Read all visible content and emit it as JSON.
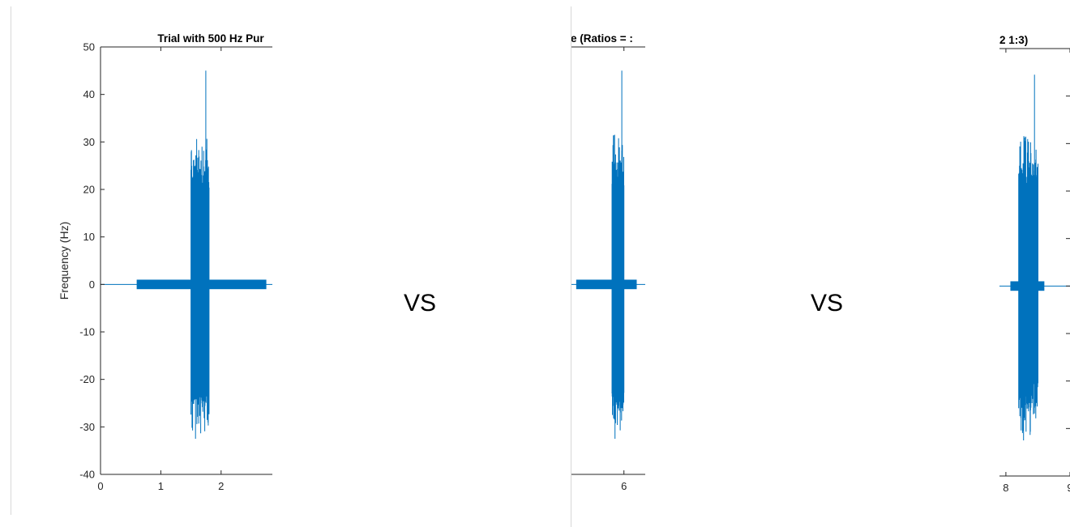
{
  "chart_data": [
    {
      "type": "line",
      "title": "Trial with 500 Hz Pur",
      "ylabel": "Frequency (Hz)",
      "xlabel": "",
      "xlim": [
        0,
        2.85
      ],
      "ylim": [
        -40,
        50
      ],
      "xticks": [
        0,
        1,
        2
      ],
      "yticks": [
        -40,
        -30,
        -20,
        -10,
        0,
        10,
        20,
        30,
        40,
        50
      ],
      "grid": false,
      "series": [
        {
          "color": "#0072BD",
          "baseline": 0,
          "band": {
            "x_start": 0.6,
            "x_end": 2.75,
            "amplitude": 1.0
          },
          "burst": {
            "x_start": 1.5,
            "x_end": 1.8,
            "dense_amplitude": 20,
            "max": 45,
            "min": -32.5
          }
        }
      ]
    },
    {
      "type": "line",
      "title": "e (Ratios = :",
      "ylabel": "",
      "xlabel": "",
      "xlim": [
        4.75,
        6.5
      ],
      "ylim": [
        -40,
        50
      ],
      "xticks": [
        6
      ],
      "yticks": [],
      "grid": false,
      "series": [
        {
          "color": "#0072BD",
          "baseline": 0,
          "band": {
            "x_start": 4.88,
            "x_end": 6.3,
            "amplitude": 1.0
          },
          "burst": {
            "x_start": 5.72,
            "x_end": 6.0,
            "dense_amplitude": 20,
            "max": 45,
            "min": -32.5
          }
        }
      ]
    },
    {
      "type": "line",
      "title": "2 1:3)",
      "ylabel": "",
      "xlabel": "",
      "xlim": [
        7.9,
        9.0
      ],
      "ylim": [
        -40,
        50
      ],
      "xticks": [
        8,
        9
      ],
      "yticks": [],
      "grid": false,
      "series": [
        {
          "color": "#0072BD",
          "baseline": 0,
          "band": {
            "x_start": 8.07,
            "x_end": 8.6,
            "amplitude": 1.0
          },
          "burst": {
            "x_start": 8.2,
            "x_end": 8.5,
            "dense_amplitude": 20,
            "max": 44.5,
            "min": -32.5
          }
        }
      ]
    }
  ],
  "separators": [
    "VS",
    "VS"
  ]
}
